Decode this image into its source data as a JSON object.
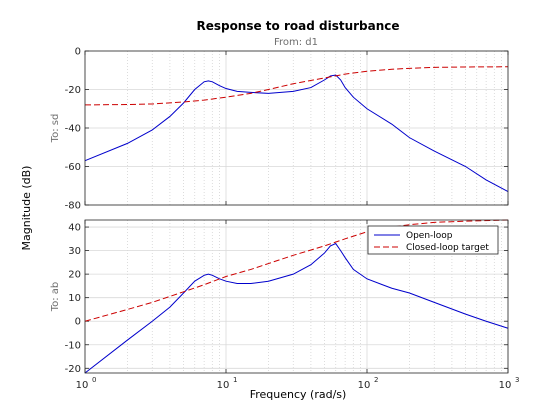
{
  "chart_data": {
    "type": "line",
    "title": "Response to road disturbance",
    "subtitle": "From: d1",
    "xlabel": "Frequency  (rad/s)",
    "ylabel": "Magnitude (dB)",
    "xscale": "log",
    "xlim": [
      1,
      1000
    ],
    "x_ticks": [
      {
        "value": 1,
        "label": "10",
        "exp": "0"
      },
      {
        "value": 10,
        "label": "10",
        "exp": "1"
      },
      {
        "value": 100,
        "label": "10",
        "exp": "2"
      },
      {
        "value": 1000,
        "label": "10",
        "exp": "3"
      }
    ],
    "grid": true,
    "legend_position": "top-right",
    "legend": [
      "Open-loop",
      "Closed-loop target"
    ],
    "colors": {
      "open_loop": "#0000cc",
      "closed_loop": "#cc0000"
    },
    "subplots": [
      {
        "ylabel": "To: sd",
        "ylim": [
          -80,
          0
        ],
        "yticks": [
          0,
          -20,
          -40,
          -60,
          -80
        ],
        "series": [
          {
            "name": "Open-loop",
            "style": "solid",
            "x": [
              1,
              2,
              3,
              4,
              5,
              6,
              7,
              7.5,
              8,
              9,
              10,
              12,
              15,
              20,
              30,
              40,
              50,
              55,
              60,
              65,
              70,
              80,
              100,
              150,
              200,
              300,
              500,
              700,
              1000
            ],
            "y": [
              -57,
              -48,
              -41,
              -34,
              -27,
              -20,
              -16,
              -15.5,
              -16,
              -18,
              -19.5,
              -21,
              -21.5,
              -22,
              -21,
              -19,
              -15,
              -13,
              -12.5,
              -15,
              -19,
              -24,
              -30,
              -38,
              -45,
              -52,
              -60,
              -67,
              -73
            ]
          },
          {
            "name": "Closed-loop target",
            "style": "dashed",
            "x": [
              1,
              2,
              3,
              5,
              7,
              10,
              15,
              20,
              30,
              50,
              70,
              100,
              150,
              200,
              300,
              500,
              1000
            ],
            "y": [
              -28,
              -27.8,
              -27.5,
              -26.5,
              -25.5,
              -24,
              -22,
              -20,
              -17,
              -14,
              -12,
              -10.5,
              -9.5,
              -9,
              -8.5,
              -8.3,
              -8.2
            ]
          }
        ]
      },
      {
        "ylabel": "To: ab",
        "ylim": [
          -22,
          43
        ],
        "yticks": [
          40,
          30,
          20,
          10,
          0,
          -10,
          -20
        ],
        "series": [
          {
            "name": "Open-loop",
            "style": "solid",
            "x": [
              1,
              2,
              3,
              4,
              5,
              6,
              7,
              7.5,
              8,
              9,
              10,
              12,
              15,
              20,
              30,
              40,
              50,
              55,
              60,
              65,
              70,
              80,
              100,
              150,
              200,
              300,
              500,
              700,
              1000
            ],
            "y": [
              -22,
              -8,
              0,
              6,
              12,
              17,
              19.5,
              20,
              19.5,
              18,
              17,
              16,
              16,
              17,
              20,
              24,
              29,
              32,
              33,
              30,
              27,
              22,
              18,
              14,
              12,
              8,
              3,
              0,
              -3
            ]
          },
          {
            "name": "Closed-loop target",
            "style": "dashed",
            "x": [
              1,
              2,
              3,
              5,
              7,
              10,
              15,
              20,
              30,
              50,
              70,
              100,
              150,
              200,
              300,
              500,
              1000
            ],
            "y": [
              0,
              5,
              8,
              12.5,
              15.5,
              19,
              22,
              24.5,
              28,
              32,
              35,
              38,
              40,
              41,
              42,
              42.5,
              43
            ]
          }
        ]
      }
    ]
  }
}
